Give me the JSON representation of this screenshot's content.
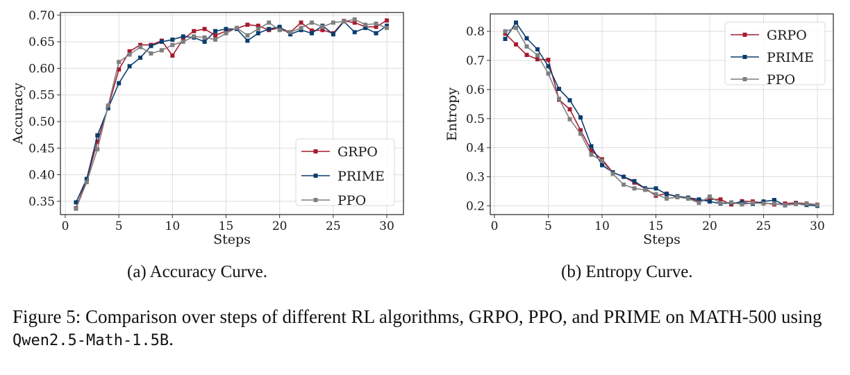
{
  "figure": {
    "caption_prefix": "Figure 5: Comparison over steps of different RL algorithms, GRPO, PPO, and PRIME on MATH-500 using ",
    "caption_model": "Qwen2.5-Math-1.5B",
    "caption_suffix": "."
  },
  "colors": {
    "GRPO": "#a51c30",
    "PRIME": "#0b3d6e",
    "PPO": "#7f7f7f"
  },
  "chart_data": [
    {
      "type": "line",
      "subcaption": "(a) Accuracy Curve.",
      "xlabel": "Steps",
      "ylabel": "Accuracy",
      "xlim": [
        0,
        30
      ],
      "ylim": [
        0.325,
        0.705
      ],
      "xticks": [
        0,
        5,
        10,
        15,
        20,
        25,
        30
      ],
      "yticks": [
        0.35,
        0.4,
        0.45,
        0.5,
        0.55,
        0.6,
        0.65,
        0.7
      ],
      "ytick_labels": [
        "0.35",
        "0.40",
        "0.45",
        "0.50",
        "0.55",
        "0.60",
        "0.65",
        "0.70"
      ],
      "grid": true,
      "legend": "lower-right",
      "x": [
        1,
        2,
        3,
        4,
        5,
        6,
        7,
        8,
        9,
        10,
        11,
        12,
        13,
        14,
        15,
        16,
        17,
        18,
        19,
        20,
        21,
        22,
        23,
        24,
        25,
        26,
        27,
        28,
        29,
        30
      ],
      "series": [
        {
          "name": "GRPO",
          "values": [
            0.337,
            0.391,
            0.462,
            0.527,
            0.598,
            0.632,
            0.644,
            0.644,
            0.652,
            0.624,
            0.655,
            0.67,
            0.674,
            0.662,
            0.67,
            0.675,
            0.682,
            0.68,
            0.672,
            0.676,
            0.668,
            0.686,
            0.671,
            0.672,
            0.666,
            0.689,
            0.686,
            0.678,
            0.678,
            0.69
          ]
        },
        {
          "name": "PRIME",
          "values": [
            0.348,
            0.392,
            0.474,
            0.525,
            0.572,
            0.604,
            0.62,
            0.642,
            0.65,
            0.654,
            0.66,
            0.658,
            0.65,
            0.67,
            0.674,
            0.674,
            0.652,
            0.666,
            0.674,
            0.678,
            0.664,
            0.672,
            0.666,
            0.68,
            0.664,
            0.688,
            0.668,
            0.676,
            0.666,
            0.68
          ]
        },
        {
          "name": "PPO",
          "values": [
            0.336,
            0.386,
            0.448,
            0.53,
            0.612,
            0.626,
            0.64,
            0.628,
            0.634,
            0.644,
            0.65,
            0.66,
            0.658,
            0.654,
            0.666,
            0.676,
            0.662,
            0.674,
            0.686,
            0.672,
            0.668,
            0.676,
            0.686,
            0.678,
            0.686,
            0.688,
            0.692,
            0.682,
            0.684,
            0.676
          ]
        }
      ]
    },
    {
      "type": "line",
      "subcaption": "(b) Entropy Curve.",
      "xlabel": "Steps",
      "ylabel": "Entropy",
      "xlim": [
        0,
        30
      ],
      "ylim": [
        0.17,
        0.86
      ],
      "xticks": [
        0,
        5,
        10,
        15,
        20,
        25,
        30
      ],
      "yticks": [
        0.2,
        0.3,
        0.4,
        0.5,
        0.6,
        0.7,
        0.8
      ],
      "ytick_labels": [
        "0.2",
        "0.3",
        "0.4",
        "0.5",
        "0.6",
        "0.7",
        "0.8"
      ],
      "grid": true,
      "legend": "upper-right",
      "x": [
        1,
        2,
        3,
        4,
        5,
        6,
        7,
        8,
        9,
        10,
        11,
        12,
        13,
        14,
        15,
        16,
        17,
        18,
        19,
        20,
        21,
        22,
        23,
        24,
        25,
        26,
        27,
        28,
        29,
        30
      ],
      "series": [
        {
          "name": "GRPO",
          "values": [
            0.792,
            0.755,
            0.719,
            0.704,
            0.702,
            0.565,
            0.532,
            0.46,
            0.39,
            0.36,
            0.315,
            0.3,
            0.28,
            0.26,
            0.235,
            0.242,
            0.23,
            0.228,
            0.215,
            0.222,
            0.222,
            0.205,
            0.216,
            0.215,
            0.21,
            0.205,
            0.208,
            0.21,
            0.208,
            0.204
          ]
        },
        {
          "name": "PRIME",
          "values": [
            0.774,
            0.83,
            0.776,
            0.738,
            0.68,
            0.602,
            0.563,
            0.504,
            0.405,
            0.34,
            0.315,
            0.3,
            0.285,
            0.26,
            0.26,
            0.24,
            0.233,
            0.228,
            0.222,
            0.215,
            0.208,
            0.21,
            0.212,
            0.207,
            0.215,
            0.22,
            0.202,
            0.208,
            0.203,
            0.2
          ]
        },
        {
          "name": "PPO",
          "values": [
            0.8,
            0.812,
            0.748,
            0.718,
            0.655,
            0.568,
            0.498,
            0.448,
            0.376,
            0.355,
            0.31,
            0.273,
            0.26,
            0.255,
            0.24,
            0.225,
            0.23,
            0.225,
            0.21,
            0.232,
            0.21,
            0.212,
            0.205,
            0.21,
            0.208,
            0.208,
            0.203,
            0.206,
            0.207,
            0.203
          ]
        }
      ]
    }
  ]
}
